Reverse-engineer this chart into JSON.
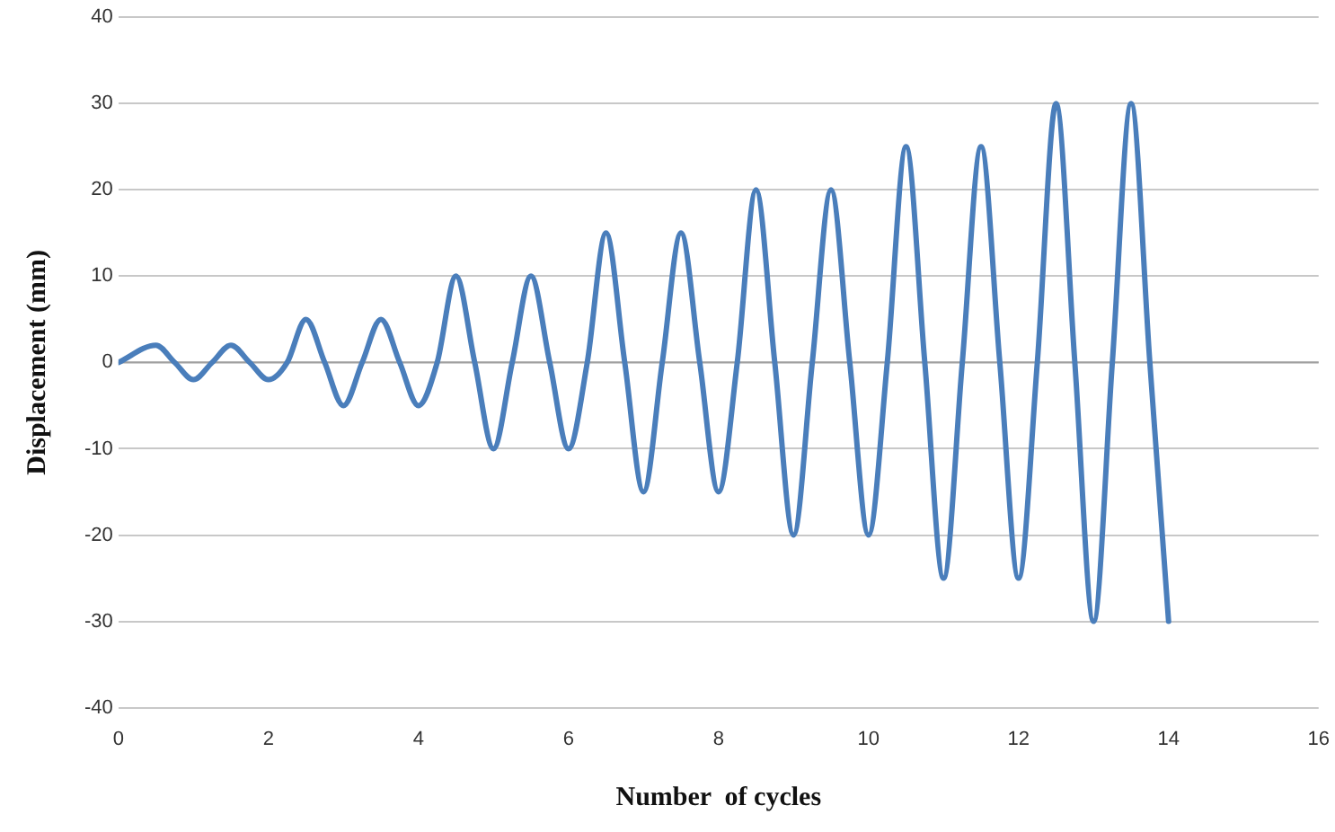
{
  "chart_data": {
    "type": "line",
    "xlabel": "Number  of cycles",
    "ylabel": "Displacement (mm)",
    "x": [
      0,
      0.5,
      0.75,
      1,
      1.25,
      1.5,
      1.75,
      2,
      2.25,
      2.5,
      2.75,
      3,
      3.25,
      3.5,
      3.75,
      4,
      4.25,
      4.5,
      4.75,
      5,
      5.25,
      5.5,
      5.75,
      6,
      6.25,
      6.5,
      6.75,
      7,
      7.25,
      7.5,
      7.75,
      8,
      8.25,
      8.5,
      8.75,
      9,
      9.25,
      9.5,
      9.75,
      10,
      10.25,
      10.5,
      10.75,
      11,
      11.25,
      11.5,
      11.75,
      12,
      12.25,
      12.5,
      12.75,
      13,
      13.25,
      13.5,
      13.75,
      14
    ],
    "series": [
      {
        "color": "#4a7ebb",
        "values": [
          0,
          2,
          0,
          -2,
          0,
          2,
          0,
          -2,
          0,
          5,
          0,
          -5,
          0,
          5,
          0,
          -5,
          0,
          10,
          0,
          -10,
          0,
          10,
          0,
          -10,
          0,
          15,
          0,
          -15,
          0,
          15,
          0,
          -15,
          0,
          20,
          0,
          -20,
          0,
          20,
          0,
          -20,
          0,
          25,
          0,
          -25,
          0,
          25,
          0,
          -25,
          0,
          30,
          0,
          -30,
          0,
          30,
          0,
          -30
        ]
      }
    ],
    "xlim": [
      0,
      16
    ],
    "xticks": [
      0,
      2,
      4,
      6,
      8,
      10,
      12,
      14,
      16
    ],
    "ylim": [
      -40,
      40
    ],
    "yticks": [
      -40,
      -30,
      -20,
      -10,
      0,
      10,
      20,
      30,
      40
    ],
    "grid": "y",
    "legend": false,
    "marker": "none",
    "line_style": "solid"
  }
}
